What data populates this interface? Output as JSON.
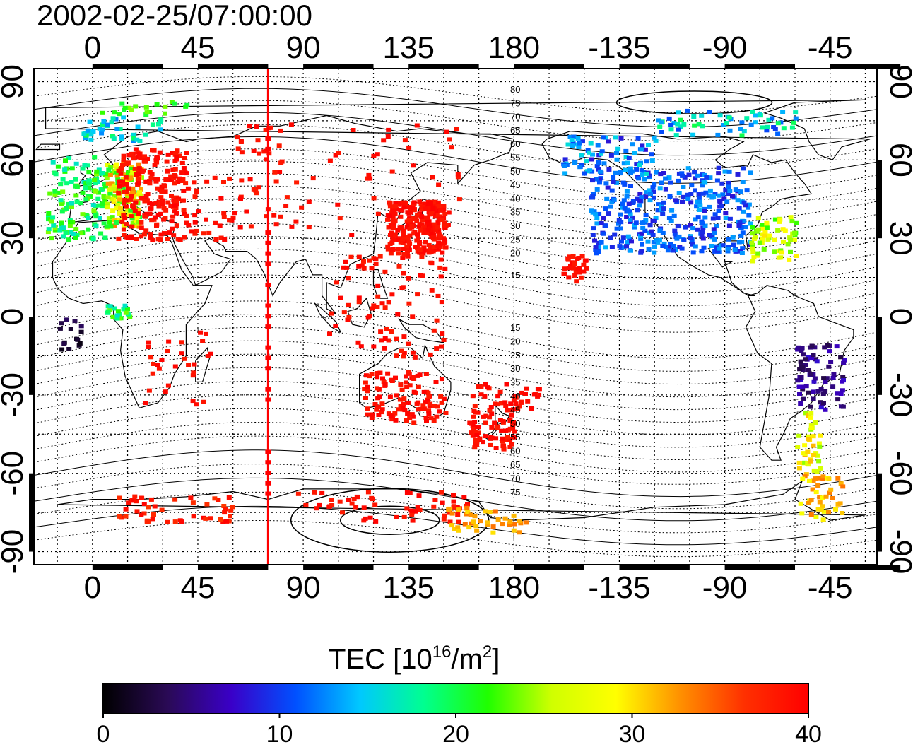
{
  "title": "2002-02-25/07:00:00",
  "colorbar": {
    "label_main": "TEC  [10",
    "label_sup1": "16",
    "label_mid": "/m",
    "label_sup2": "2",
    "label_end": "]",
    "min": 0,
    "max": 40,
    "ticks": [
      "0",
      "10",
      "20",
      "30",
      "40"
    ],
    "stops": [
      "#000000",
      "#2a0a55",
      "#3a00c8",
      "#0050ff",
      "#00c8ff",
      "#00ff90",
      "#20ff00",
      "#d0ff00",
      "#ffff00",
      "#ff9000",
      "#ff3000",
      "#ff0000"
    ]
  },
  "axes": {
    "top_lon_labels": [
      "0",
      "45",
      "90",
      "135",
      "180",
      "-135",
      "-90",
      "-45"
    ],
    "bottom_lon_labels": [
      "0",
      "45",
      "90",
      "135",
      "180",
      "-135",
      "-90",
      "-45"
    ],
    "left_lat_labels": [
      "90",
      "60",
      "30",
      "0",
      "-30",
      "-60",
      "-90"
    ],
    "right_lat_labels": [
      "90",
      "60",
      "30",
      "0",
      "-30",
      "-60",
      "-90"
    ],
    "lon_range": [
      -25,
      335
    ],
    "lat_range": [
      -95,
      95
    ],
    "grid": "dotted, every 15 degrees"
  },
  "contours": {
    "north_labels": [
      "80",
      "75",
      "70",
      "65",
      "60",
      "55",
      "50",
      "45",
      "40",
      "35",
      "30",
      "25",
      "20",
      "15"
    ],
    "south_labels": [
      "15",
      "20",
      "25",
      "30",
      "35",
      "40",
      "45",
      "50",
      "55",
      "60",
      "65",
      "70",
      "75"
    ]
  },
  "marker": {
    "lon": 75,
    "color": "#ff0000"
  },
  "colors": {
    "frame": "#000000",
    "coast": "#000000",
    "high_tec": "#ff0000"
  }
}
